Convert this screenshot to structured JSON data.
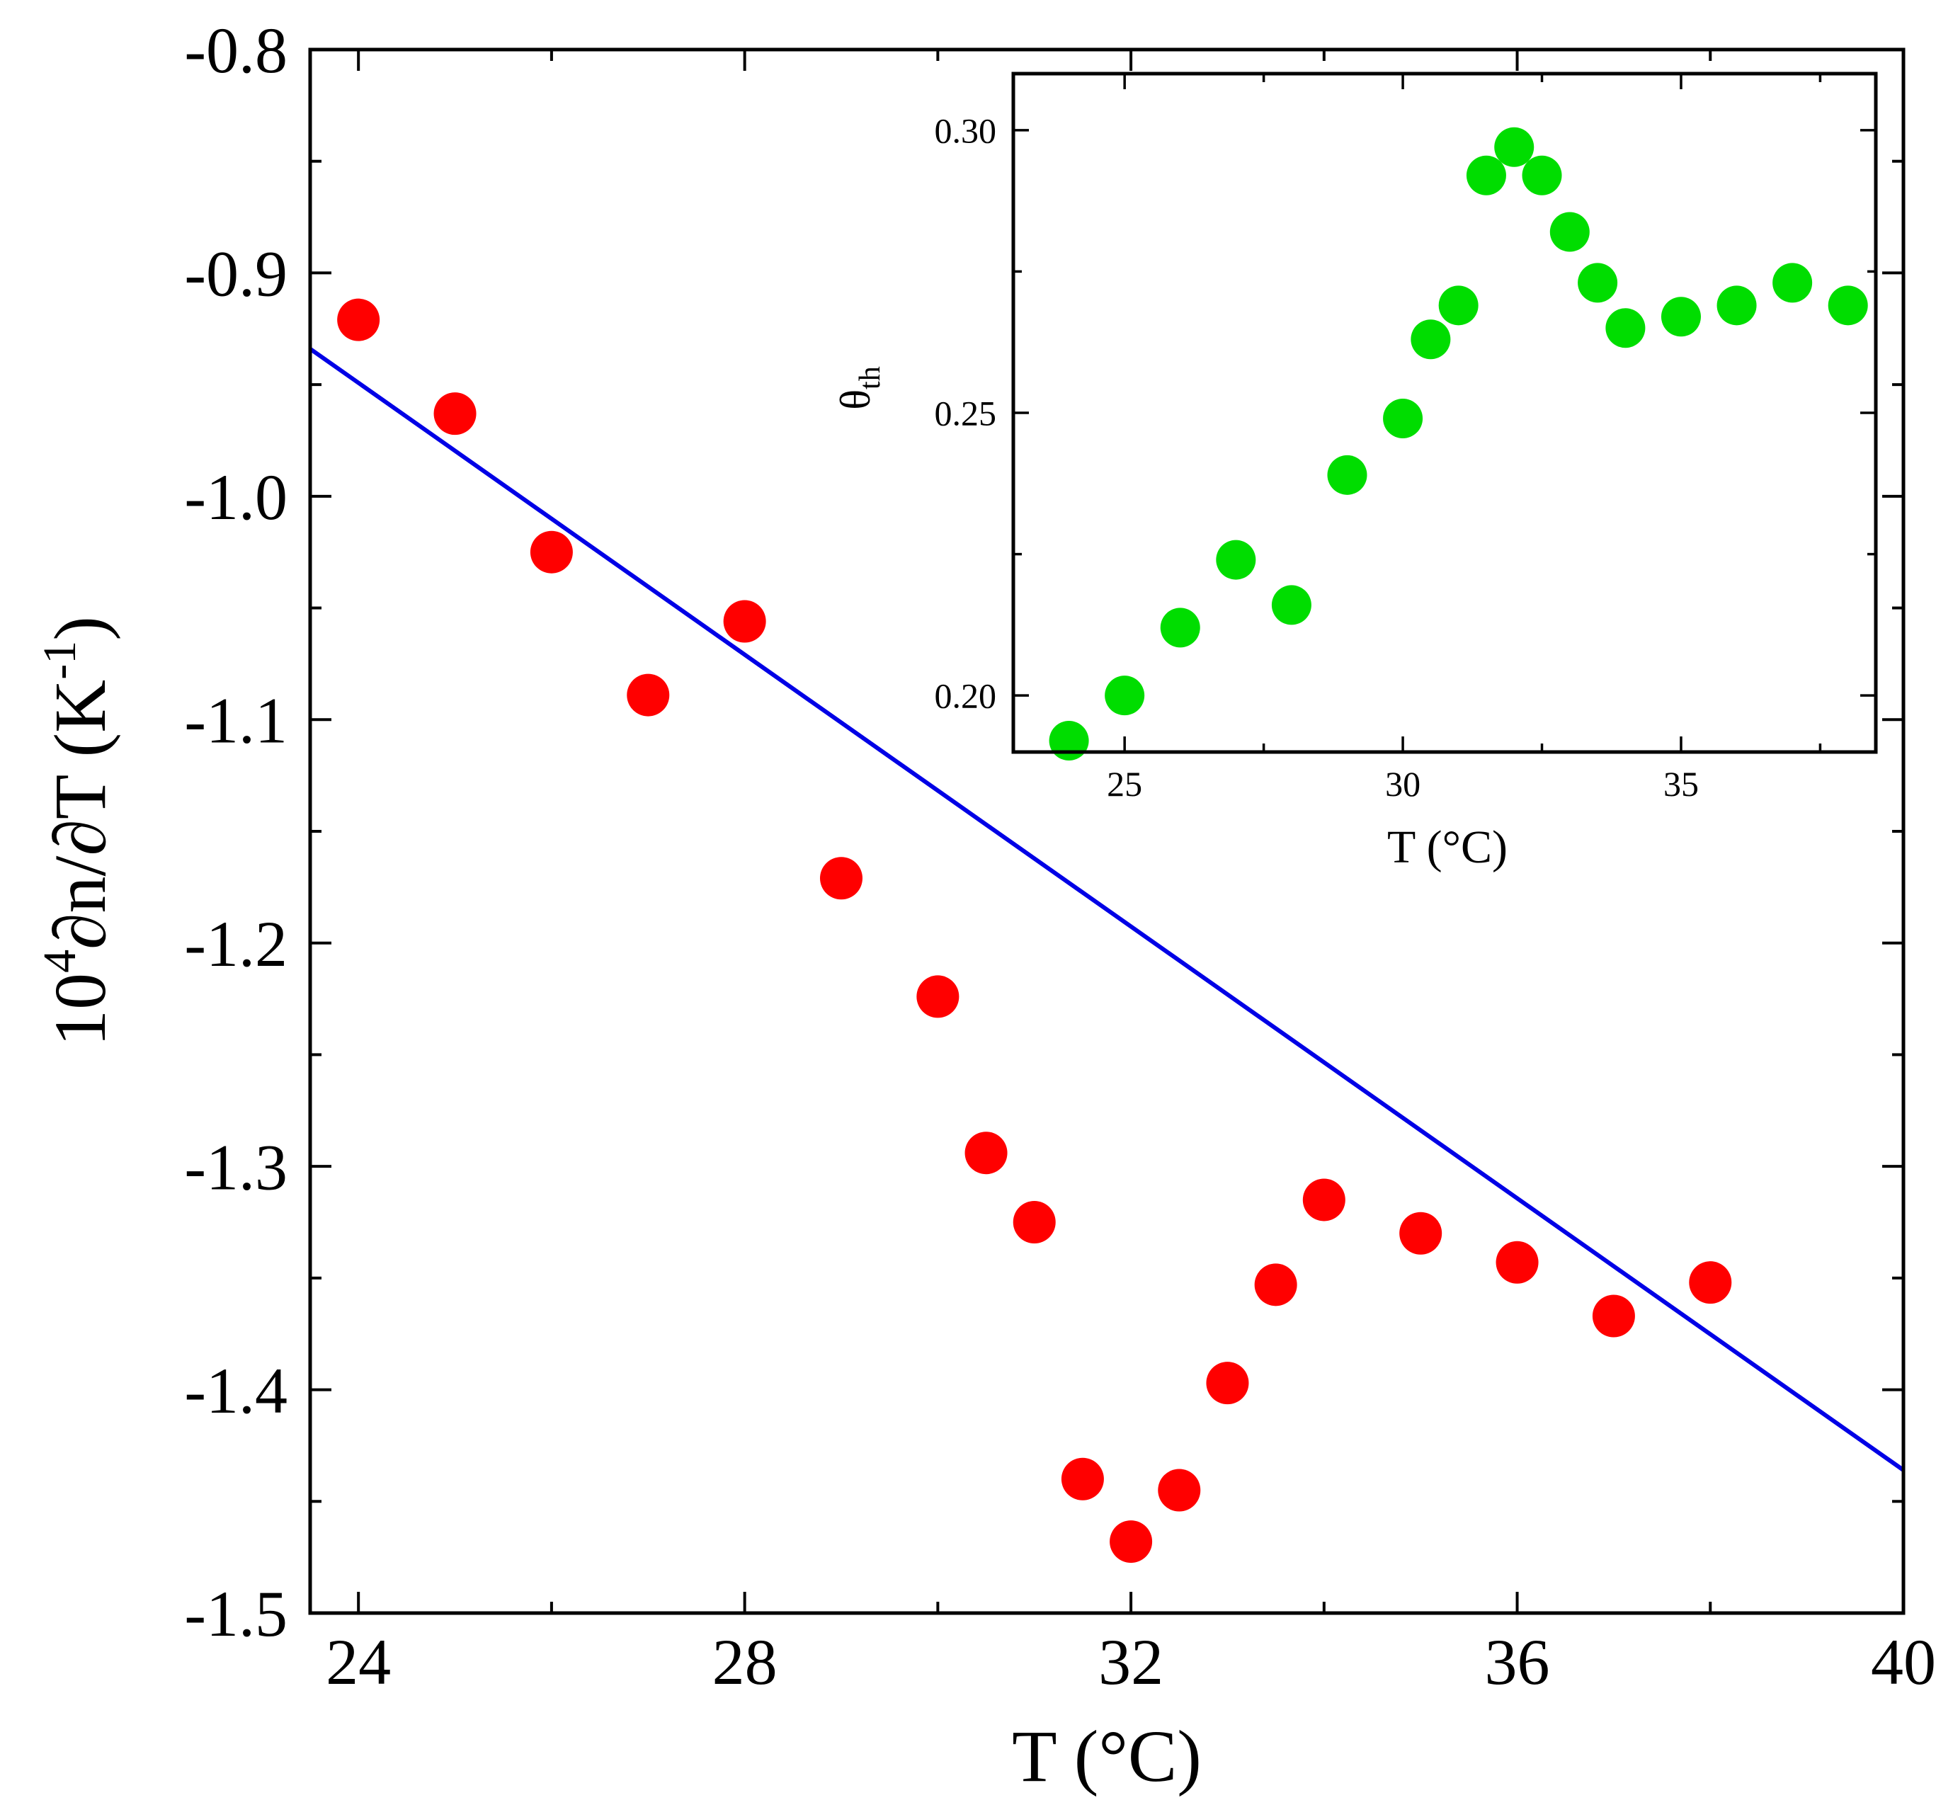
{
  "chart_data": [
    {
      "type": "scatter",
      "title": "",
      "xlabel": "T (°C)",
      "ylabel": "10⁴∂n/∂T (K⁻¹)",
      "ylabel_parts": {
        "coef": "10",
        "coef_exp": "4",
        "expr": "∂n/∂T (K",
        "unit_exp": "-1",
        "close": ")"
      },
      "xlim": [
        23.5,
        40
      ],
      "ylim": [
        -1.5,
        -0.8
      ],
      "xticks": [
        24,
        28,
        32,
        36,
        40
      ],
      "xtick_labels": [
        "24",
        "28",
        "32",
        "36",
        "40"
      ],
      "yticks": [
        -0.8,
        -0.9,
        -1.0,
        -1.1,
        -1.2,
        -1.3,
        -1.4,
        -1.5
      ],
      "ytick_labels": [
        "-0.8",
        "-0.9",
        "-1.0",
        "-1.1",
        "-1.2",
        "-1.3",
        "-1.4",
        "-1.5"
      ],
      "grid": false,
      "colors": {
        "points": "#ff0000",
        "line": "#0000e6"
      },
      "series": [
        {
          "kind": "points",
          "x": [
            24,
            25,
            26,
            27,
            28,
            29,
            30,
            30.5,
            31,
            31.5,
            32,
            32.5,
            33,
            33.5,
            34,
            35,
            36,
            37,
            38
          ],
          "y": [
            -0.921,
            -0.963,
            -1.025,
            -1.089,
            -1.056,
            -1.171,
            -1.224,
            -1.294,
            -1.325,
            -1.44,
            -1.468,
            -1.445,
            -1.397,
            -1.353,
            -1.315,
            -1.33,
            -1.343,
            -1.367,
            -1.352
          ]
        },
        {
          "kind": "line",
          "x": [
            23.5,
            40
          ],
          "y": [
            -0.934,
            -1.436
          ]
        }
      ]
    },
    {
      "type": "scatter",
      "inset": true,
      "title": "",
      "xlabel": "T (°C)",
      "ylabel": "θth",
      "ylabel_parts": {
        "main": "θ",
        "sub": "th"
      },
      "xlim": [
        23,
        38.5
      ],
      "ylim": [
        0.19,
        0.31
      ],
      "xticks": [
        25,
        30,
        35
      ],
      "xtick_labels": [
        "25",
        "30",
        "35"
      ],
      "yticks": [
        0.2,
        0.25,
        0.3
      ],
      "ytick_labels": [
        "0.20",
        "0.25",
        "0.30"
      ],
      "grid": false,
      "colors": {
        "points": "#00dd00"
      },
      "series": [
        {
          "kind": "points",
          "x": [
            24,
            25,
            26,
            27,
            28,
            29,
            30,
            30.5,
            31,
            31.5,
            32,
            32.5,
            33,
            33.5,
            34,
            35,
            36,
            37,
            38
          ],
          "y": [
            0.192,
            0.2,
            0.212,
            0.224,
            0.216,
            0.239,
            0.249,
            0.263,
            0.269,
            0.292,
            0.297,
            0.292,
            0.282,
            0.273,
            0.265,
            0.267,
            0.269,
            0.273,
            0.269
          ]
        }
      ]
    }
  ]
}
